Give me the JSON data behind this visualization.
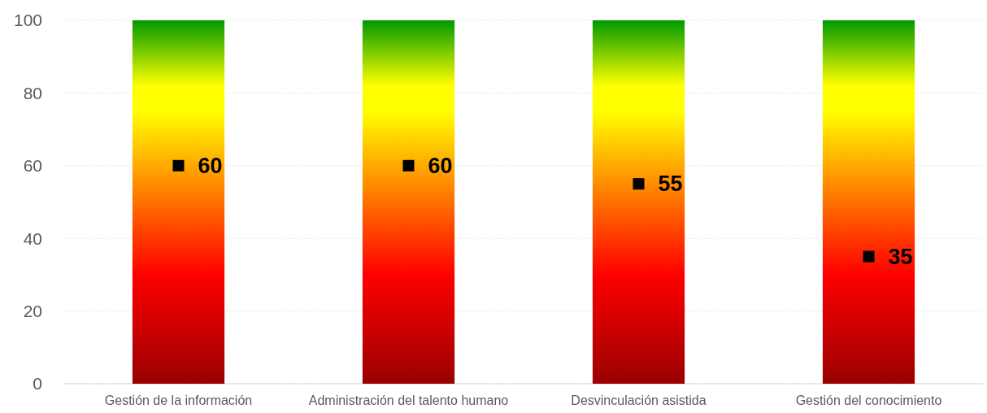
{
  "chart_data": {
    "type": "bar",
    "categories": [
      "Gestión de la información",
      "Administración del talento humano",
      "Desvinculación asistida",
      "Gestión del conocimiento"
    ],
    "series": [
      {
        "values": [
          100,
          100,
          100,
          100
        ]
      },
      {
        "type": "scatter",
        "color": "#000000",
        "marker": "square",
        "values": [
          60,
          60,
          55,
          35
        ],
        "value_labels": [
          "60",
          "60",
          "55",
          "35"
        ]
      }
    ],
    "ylim": [
      0,
      100
    ],
    "yticks": [
      0,
      20,
      40,
      60,
      80,
      100
    ],
    "grid": "y"
  }
}
